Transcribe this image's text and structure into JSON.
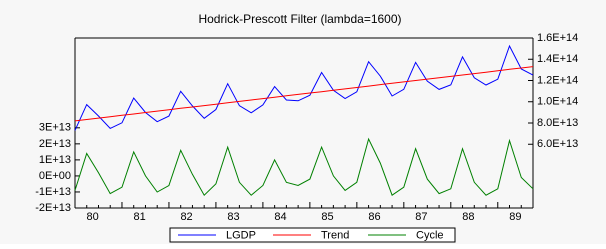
{
  "chart_data": {
    "type": "line",
    "title": "Hodrick-Prescott Filter (lambda=1600)",
    "categories": [
      "80",
      null,
      null,
      null,
      "81",
      null,
      null,
      null,
      "82",
      null,
      null,
      null,
      "83",
      null,
      null,
      null,
      "84",
      null,
      null,
      null,
      "85",
      null,
      null,
      null,
      "86",
      null,
      null,
      null,
      "87",
      null,
      null,
      null,
      "88",
      null,
      null,
      null,
      "89",
      null,
      null,
      null
    ],
    "series": [
      {
        "name": "LGDP",
        "color": "#0000ff",
        "axis": "y2",
        "values": [
          73000000000000.0,
          97300000000000.0,
          86600000000000.0,
          74900000000000.0,
          80200000000000.0,
          103500000000000.0,
          89900000000000.0,
          81200000000000.0,
          86500000000000.0,
          109800000000000.0,
          96100000000000.0,
          84400000000000.0,
          92700000000000.0,
          117000000000000.0,
          96300000000000.0,
          89600000000000.0,
          97000000000000.0,
          114300000000000.0,
          101600000000000.0,
          100900000000000.0,
          106200000000000.0,
          127500000000000.0,
          110800000000000.0,
          103100000000000.0,
          109400000000000.0,
          137700000000000.0,
          124100000000000.0,
          105400000000000.0,
          111700000000000.0,
          137000000000000.0,
          119300000000000.0,
          111600000000000.0,
          115900000000000.0,
          142200000000000.0,
          122500000000000.0,
          115800000000000.0,
          121200000000000.0,
          152500000000000.0,
          130800000000000.0,
          125100000000000.0
        ]
      },
      {
        "name": "Trend",
        "color": "#ff0000",
        "axis": "y2",
        "values": [
          82000000000000.0,
          83300000000000.0,
          84600000000000.0,
          85900000000000.0,
          87200000000000.0,
          88500000000000.0,
          89900000000000.0,
          91200000000000.0,
          92500000000000.0,
          93800000000000.0,
          95100000000000.0,
          96400000000000.0,
          97700000000000.0,
          99000000000000.0,
          100300000000000.0,
          101600000000000.0,
          103000000000000.0,
          104300000000000.0,
          105600000000000.0,
          106900000000000.0,
          108200000000000.0,
          109500000000000.0,
          110800000000000.0,
          112100000000000.0,
          113400000000000.0,
          114700000000000.0,
          116100000000000.0,
          117400000000000.0,
          118700000000000.0,
          120000000000000.0,
          121300000000000.0,
          122600000000000.0,
          123900000000000.0,
          125200000000000.0,
          126500000000000.0,
          127800000000000.0,
          129200000000000.0,
          130500000000000.0,
          131800000000000.0,
          133100000000000.0
        ]
      },
      {
        "name": "Cycle",
        "color": "#008000",
        "values": [
          -9000000000000.0,
          14000000000000.0,
          2000000000000.0,
          -11000000000000.0,
          -7000000000000.0,
          15000000000000.0,
          0.0,
          -10000000000000.0,
          -6000000000000.0,
          16000000000000.0,
          1000000000000.0,
          -12000000000000.0,
          -5000000000000.0,
          18000000000000.0,
          -4000000000000.0,
          -12000000000000.0,
          -6000000000000.0,
          10000000000000.0,
          -4000000000000.0,
          -6000000000000.0,
          -2000000000000.0,
          18000000000000.0,
          0.0,
          -9000000000000.0,
          -4000000000000.0,
          23000000000000.0,
          8000000000000.0,
          -12000000000000.0,
          -7000000000000.0,
          17000000000000.0,
          -2000000000000.0,
          -11000000000000.0,
          -8000000000000.0,
          17000000000000.0,
          -4000000000000.0,
          -12000000000000.0,
          -8000000000000.0,
          22000000000000.0,
          -1000000000000.0,
          -8000000000000.0
        ]
      }
    ],
    "ylim": [
      -20000000000000.0,
      86000000000000.0
    ],
    "yticks": [
      {
        "value": -20000000000000.0,
        "label": "-2E+13"
      },
      {
        "value": -10000000000000.0,
        "label": "-1E+13"
      },
      {
        "value": 0,
        "label": "0E+00"
      },
      {
        "value": 10000000000000.0,
        "label": "1E+13"
      },
      {
        "value": 20000000000000.0,
        "label": "2E+13"
      },
      {
        "value": 30000000000000.0,
        "label": "3E+13"
      }
    ],
    "y2lim": [
      0,
      160000000000000.0
    ],
    "y2ticks": [
      {
        "value": 60000000000000.0,
        "label": "6.0E+13"
      },
      {
        "value": 80000000000000.0,
        "label": "8.0E+13"
      },
      {
        "value": 100000000000000.0,
        "label": "1.0E+14"
      },
      {
        "value": 120000000000000.0,
        "label": "1.2E+14"
      },
      {
        "value": 140000000000000.0,
        "label": "1.4E+14"
      },
      {
        "value": 160000000000000.0,
        "label": "1.6E+14"
      }
    ],
    "legend": "bottom"
  }
}
